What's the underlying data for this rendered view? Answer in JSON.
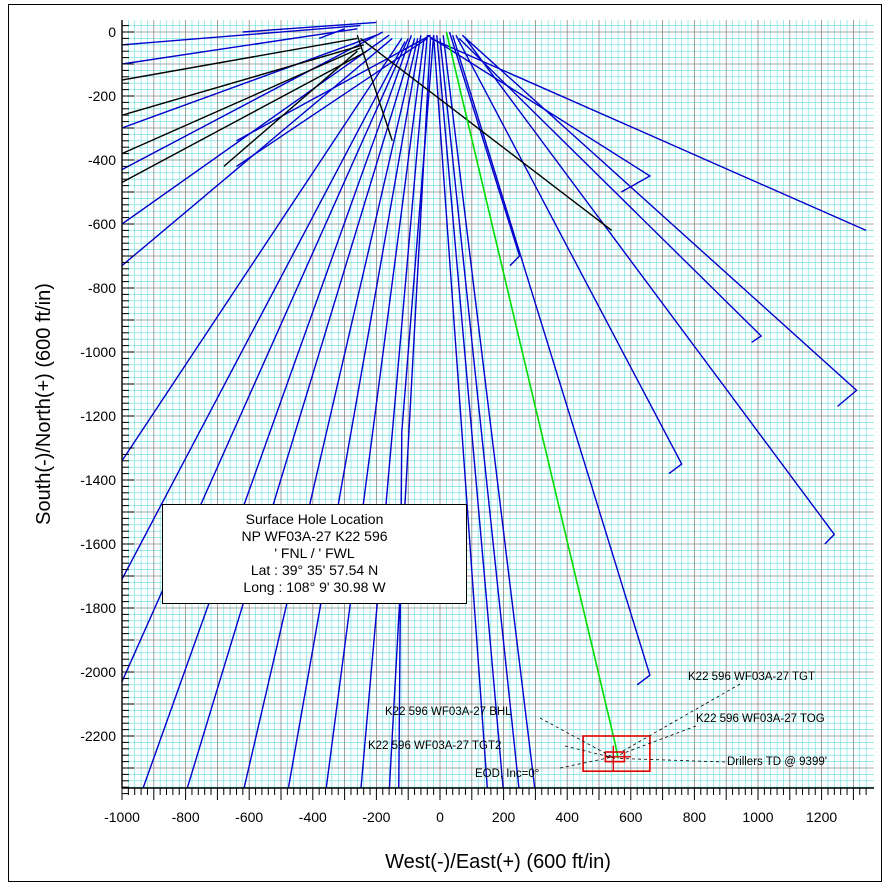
{
  "chart_data": {
    "type": "line",
    "title": "",
    "xlabel": "West(-)/East(+) (600 ft/in)",
    "ylabel": "South(-)/North(+) (600 ft/in)",
    "xlim": [
      -1000,
      1340
    ],
    "ylim": [
      -2380,
      30
    ],
    "x_ticks": [
      -1000,
      -800,
      -600,
      -400,
      -200,
      0,
      200,
      400,
      600,
      800,
      1000,
      1200
    ],
    "y_ticks": [
      0,
      -200,
      -400,
      -600,
      -800,
      -1000,
      -1200,
      -1400,
      -1600,
      -1800,
      -2000,
      -2200
    ],
    "grid": true,
    "series_colors": {
      "offset_wells": "#0000cc",
      "black_wells": "#000000",
      "plan": "#00dd00",
      "target": "#dd0000",
      "grid_minor": "#66dddd",
      "grid_major": "#888888"
    },
    "series": [
      {
        "group": "offset_wells",
        "points": [
          [
            -250,
            20
          ],
          [
            -1000,
            -40
          ]
        ]
      },
      {
        "group": "offset_wells",
        "points": [
          [
            -260,
            10
          ],
          [
            -1000,
            -100
          ]
        ]
      },
      {
        "group": "offset_wells",
        "points": [
          [
            -200,
            -10
          ],
          [
            -1000,
            -300
          ]
        ]
      },
      {
        "group": "offset_wells",
        "points": [
          [
            -180,
            0
          ],
          [
            -1000,
            -430
          ]
        ]
      },
      {
        "group": "offset_wells",
        "points": [
          [
            -160,
            -10
          ],
          [
            -1000,
            -600
          ]
        ]
      },
      {
        "group": "offset_wells",
        "points": [
          [
            -150,
            -20
          ],
          [
            -1000,
            -730
          ]
        ]
      },
      {
        "group": "offset_wells",
        "points": [
          [
            -120,
            -20
          ],
          [
            -1000,
            -1340
          ]
        ]
      },
      {
        "group": "offset_wells",
        "points": [
          [
            -110,
            -30
          ],
          [
            -1000,
            -1710
          ]
        ]
      },
      {
        "group": "offset_wells",
        "points": [
          [
            -100,
            -20
          ],
          [
            -1000,
            -2030
          ]
        ]
      },
      {
        "group": "offset_wells",
        "points": [
          [
            -90,
            -10
          ],
          [
            -940,
            -2380
          ]
        ]
      },
      {
        "group": "offset_wells",
        "points": [
          [
            -80,
            -20
          ],
          [
            -800,
            -2380
          ]
        ]
      },
      {
        "group": "offset_wells",
        "points": [
          [
            -70,
            -20
          ],
          [
            -620,
            -2380
          ]
        ]
      },
      {
        "group": "offset_wells",
        "points": [
          [
            -60,
            -10
          ],
          [
            -480,
            -2380
          ]
        ]
      },
      {
        "group": "offset_wells",
        "points": [
          [
            -50,
            -20
          ],
          [
            -360,
            -2380
          ]
        ]
      },
      {
        "group": "offset_wells",
        "points": [
          [
            -40,
            -10
          ],
          [
            -250,
            -2380
          ]
        ]
      },
      {
        "group": "offset_wells",
        "points": [
          [
            -30,
            -20
          ],
          [
            -160,
            -2380
          ]
        ]
      },
      {
        "group": "offset_wells",
        "points": [
          [
            -20,
            -10
          ],
          [
            -120,
            -1250
          ],
          [
            -130,
            -2380
          ]
        ]
      },
      {
        "group": "offset_wells",
        "points": [
          [
            -20,
            -10
          ],
          [
            150,
            -2380
          ]
        ]
      },
      {
        "group": "offset_wells",
        "points": [
          [
            -10,
            -10
          ],
          [
            200,
            -2380
          ]
        ]
      },
      {
        "group": "offset_wells",
        "points": [
          [
            0,
            -20
          ],
          [
            250,
            -2380
          ]
        ]
      },
      {
        "group": "offset_wells",
        "points": [
          [
            10,
            -10
          ],
          [
            300,
            -2380
          ]
        ]
      },
      {
        "group": "offset_wells",
        "points": [
          [
            -30,
            -10
          ],
          [
            -640,
            -340
          ]
        ]
      },
      {
        "group": "offset_wells",
        "points": [
          [
            -40,
            -20
          ],
          [
            -640,
            -420
          ]
        ]
      },
      {
        "group": "offset_wells",
        "points": [
          [
            -200,
            30
          ],
          [
            -620,
            0
          ]
        ]
      },
      {
        "group": "offset_wells",
        "points": [
          [
            -300,
            10
          ],
          [
            -380,
            -20
          ]
        ]
      },
      {
        "group": "offset_wells",
        "points": [
          [
            30,
            0
          ],
          [
            250,
            -700
          ],
          [
            220,
            -730
          ]
        ]
      },
      {
        "group": "offset_wells",
        "points": [
          [
            40,
            -10
          ],
          [
            660,
            -2010
          ],
          [
            620,
            -2040
          ]
        ]
      },
      {
        "group": "offset_wells",
        "points": [
          [
            50,
            -10
          ],
          [
            760,
            -1350
          ],
          [
            720,
            -1380
          ]
        ]
      },
      {
        "group": "offset_wells",
        "points": [
          [
            60,
            -20
          ],
          [
            1010,
            -950
          ],
          [
            980,
            -970
          ]
        ]
      },
      {
        "group": "offset_wells",
        "points": [
          [
            70,
            -10
          ],
          [
            1310,
            -1120
          ],
          [
            1250,
            -1170
          ]
        ]
      },
      {
        "group": "offset_wells",
        "points": [
          [
            80,
            -20
          ],
          [
            1240,
            -1570
          ],
          [
            1210,
            -1600
          ]
        ]
      },
      {
        "group": "offset_wells",
        "points": [
          [
            -40,
            -10
          ],
          [
            660,
            -450
          ],
          [
            570,
            -500
          ]
        ]
      },
      {
        "group": "offset_wells",
        "points": [
          [
            -30,
            -20
          ],
          [
            1340,
            -620
          ]
        ]
      },
      {
        "group": "black_wells",
        "points": [
          [
            -260,
            -20
          ],
          [
            -1000,
            -150
          ]
        ]
      },
      {
        "group": "black_wells",
        "points": [
          [
            -240,
            -40
          ],
          [
            -1000,
            -260
          ]
        ]
      },
      {
        "group": "black_wells",
        "points": [
          [
            -250,
            -50
          ],
          [
            -1000,
            -380
          ]
        ]
      },
      {
        "group": "black_wells",
        "points": [
          [
            -230,
            -60
          ],
          [
            -1000,
            -470
          ]
        ]
      },
      {
        "group": "black_wells",
        "points": [
          [
            -260,
            -60
          ],
          [
            -680,
            -420
          ]
        ]
      },
      {
        "group": "black_wells",
        "points": [
          [
            -260,
            -10
          ],
          [
            -150,
            -340
          ]
        ]
      },
      {
        "group": "black_wells",
        "points": [
          [
            -250,
            -20
          ],
          [
            540,
            -620
          ]
        ]
      },
      {
        "group": "plan",
        "points": [
          [
            20,
            0
          ],
          [
            550,
            -2220
          ],
          [
            560,
            -2270
          ]
        ]
      }
    ],
    "annotations": [
      {
        "label": "K22 596 WF03A-27 TGT",
        "target": [
          570,
          -2250
        ]
      },
      {
        "label": "K22 596 WF03A-27 TOG",
        "target": [
          560,
          -2260
        ]
      },
      {
        "label": "K22 596 WF03A-27 BHL",
        "target": [
          550,
          -2270
        ]
      },
      {
        "label": "K22 596 WF03A-27 TGT2",
        "target": [
          545,
          -2268
        ]
      },
      {
        "label": "EOD; Inc=0°",
        "target": [
          545,
          -2265
        ]
      },
      {
        "label": "Drillers TD @ 9399'",
        "target": [
          560,
          -2270
        ]
      }
    ]
  },
  "info_box": {
    "title": "Surface Hole Location",
    "well": "NP WF03A-27 K22 596",
    "footage": "' FNL / ' FWL",
    "lat": "Lat :  39° 35' 57.54 N",
    "long": "Long :  108° 9' 30.98 W"
  }
}
